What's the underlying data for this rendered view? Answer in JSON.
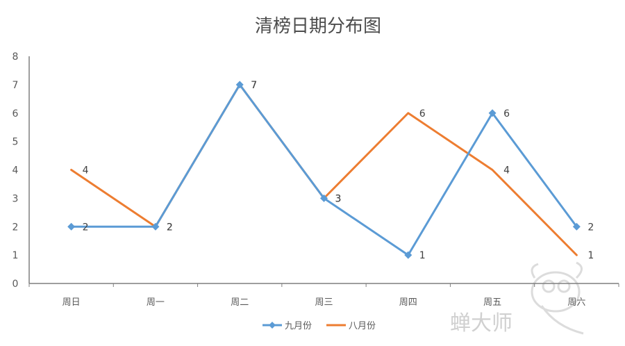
{
  "chart_data": {
    "type": "line",
    "title": "清榜日期分布图",
    "categories": [
      "周日",
      "周一",
      "周二",
      "周三",
      "周四",
      "周五",
      "周六"
    ],
    "ylim": [
      0,
      8
    ],
    "yticks": [
      0,
      1,
      2,
      3,
      4,
      5,
      6,
      7,
      8
    ],
    "grid": false,
    "legend_position": "bottom",
    "series": [
      {
        "name": "九月份",
        "values": [
          2,
          2,
          7,
          3,
          1,
          6,
          2
        ],
        "color": "#5b9bd5",
        "marker": "diamond"
      },
      {
        "name": "八月份",
        "values": [
          4,
          2,
          7,
          3,
          6,
          4,
          1
        ],
        "color": "#ed7d31",
        "marker": "none"
      }
    ]
  },
  "watermark": {
    "text": "蝉大师",
    "icon": "cicada-logo-icon"
  }
}
